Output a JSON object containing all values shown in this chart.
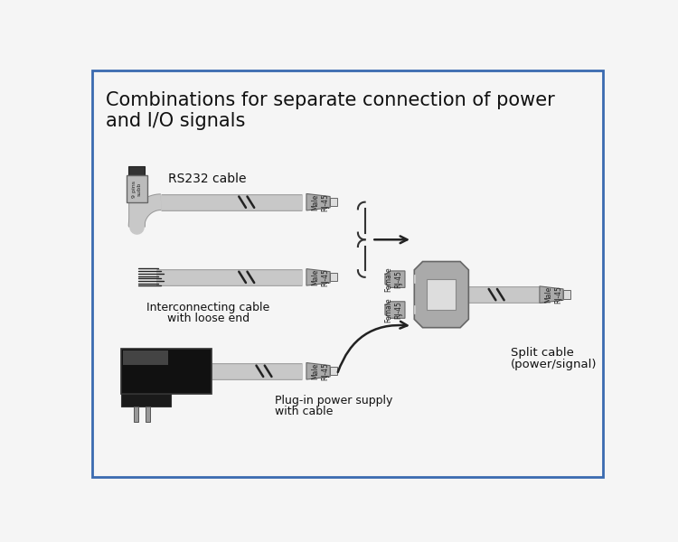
{
  "title_line1": "Combinations for separate connection of power",
  "title_line2": "and I/O signals",
  "bg_color": "#f5f5f5",
  "border_color": "#3a6ab0",
  "cable_gray": "#c8c8c8",
  "cable_outline": "#999999",
  "connector_body": "#aaaaaa",
  "connector_tab": "#dddddd",
  "splitter_body": "#aaaaaa",
  "splitter_inner": "#dddddd",
  "text_color": "#111111",
  "label_rs232": "RS232 cable",
  "label_interconnect_1": "Interconnecting cable",
  "label_interconnect_2": "with loose end",
  "label_plugin_1": "Plug-in power supply",
  "label_plugin_2": "with cable",
  "label_split_1": "Split cable",
  "label_split_2": "(power/signal)"
}
